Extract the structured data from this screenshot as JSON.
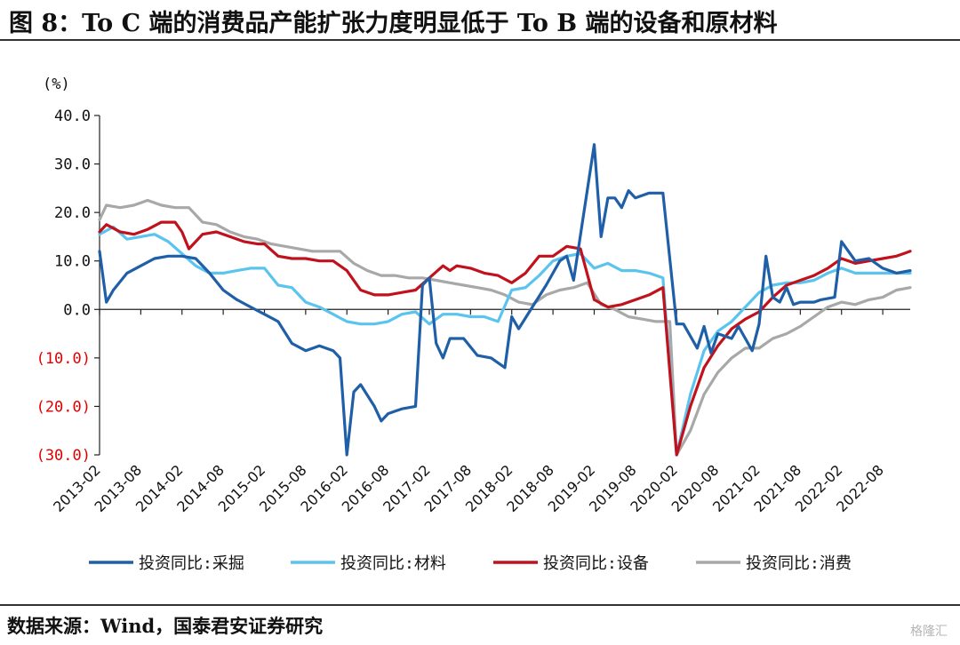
{
  "title": "图 8：To C 端的消费品产能扩张力度明显低于 To B 端的设备和原材料",
  "source": "数据来源：Wind，国泰君安证券研究",
  "watermark": "格隆汇",
  "colors": {
    "mining": "#1f5fa8",
    "materials": "#5bc4ee",
    "equipment": "#c0121c",
    "consumer": "#a8a8a8",
    "negative_label": "#e00000"
  },
  "chart_data": {
    "type": "line",
    "unit_label": "(%)",
    "ylim": [
      -30,
      40
    ],
    "yticks": [
      40,
      30,
      20,
      10,
      0,
      -10,
      -20,
      -30
    ],
    "ytick_labels": [
      "40.0",
      "30.0",
      "20.0",
      "10.0",
      "0.0",
      "(10.0)",
      "(20.0)",
      "(30.0)"
    ],
    "x_start": "2013-02",
    "x_end": "2022-12",
    "xtick_labels": [
      "2013-02",
      "2013-08",
      "2014-02",
      "2014-08",
      "2015-02",
      "2015-08",
      "2016-02",
      "2016-08",
      "2017-02",
      "2017-08",
      "2018-02",
      "2018-08",
      "2019-02",
      "2019-08",
      "2020-02",
      "2020-08",
      "2021-02",
      "2021-08",
      "2022-02",
      "2022-08"
    ],
    "legend_position": "bottom",
    "grid": false,
    "series": [
      {
        "name": "投资同比:采掘",
        "color": "#1f5fa8",
        "points": [
          [
            "2013-02",
            12.0
          ],
          [
            "2013-03",
            1.5
          ],
          [
            "2013-04",
            4.0
          ],
          [
            "2013-06",
            7.5
          ],
          [
            "2013-08",
            9.0
          ],
          [
            "2013-10",
            10.5
          ],
          [
            "2013-12",
            11.0
          ],
          [
            "2014-02",
            11.0
          ],
          [
            "2014-04",
            10.5
          ],
          [
            "2014-06",
            7.5
          ],
          [
            "2014-08",
            4.0
          ],
          [
            "2014-10",
            2.0
          ],
          [
            "2014-12",
            0.5
          ],
          [
            "2015-02",
            -1.0
          ],
          [
            "2015-04",
            -2.5
          ],
          [
            "2015-06",
            -7.0
          ],
          [
            "2015-08",
            -8.5
          ],
          [
            "2015-10",
            -7.5
          ],
          [
            "2015-12",
            -8.5
          ],
          [
            "2016-01",
            -10.0
          ],
          [
            "2016-02",
            -30.0
          ],
          [
            "2016-03",
            -17.0
          ],
          [
            "2016-04",
            -15.5
          ],
          [
            "2016-06",
            -20.0
          ],
          [
            "2016-07",
            -23.0
          ],
          [
            "2016-08",
            -21.5
          ],
          [
            "2016-09",
            -21.0
          ],
          [
            "2016-10",
            -20.5
          ],
          [
            "2016-12",
            -20.0
          ],
          [
            "2017-01",
            5.0
          ],
          [
            "2017-02",
            6.5
          ],
          [
            "2017-03",
            -7.0
          ],
          [
            "2017-04",
            -10.0
          ],
          [
            "2017-05",
            -6.0
          ],
          [
            "2017-07",
            -6.0
          ],
          [
            "2017-09",
            -9.5
          ],
          [
            "2017-11",
            -10.0
          ],
          [
            "2018-01",
            -12.0
          ],
          [
            "2018-02",
            -1.5
          ],
          [
            "2018-03",
            -4.0
          ],
          [
            "2018-05",
            0.5
          ],
          [
            "2018-07",
            5.0
          ],
          [
            "2018-09",
            10.0
          ],
          [
            "2018-10",
            11.0
          ],
          [
            "2018-11",
            6.0
          ],
          [
            "2019-02",
            34.0
          ],
          [
            "2019-03",
            15.0
          ],
          [
            "2019-04",
            23.0
          ],
          [
            "2019-05",
            23.0
          ],
          [
            "2019-06",
            21.0
          ],
          [
            "2019-07",
            24.5
          ],
          [
            "2019-08",
            23.0
          ],
          [
            "2019-10",
            24.0
          ],
          [
            "2019-12",
            24.0
          ],
          [
            "2020-02",
            -3.0
          ],
          [
            "2020-03",
            -3.0
          ],
          [
            "2020-05",
            -8.0
          ],
          [
            "2020-06",
            -3.5
          ],
          [
            "2020-07",
            -9.0
          ],
          [
            "2020-08",
            -5.0
          ],
          [
            "2020-10",
            -6.0
          ],
          [
            "2020-11",
            -3.5
          ],
          [
            "2021-01",
            -8.5
          ],
          [
            "2021-02",
            -3.0
          ],
          [
            "2021-03",
            11.0
          ],
          [
            "2021-04",
            2.5
          ],
          [
            "2021-05",
            1.5
          ],
          [
            "2021-06",
            4.5
          ],
          [
            "2021-07",
            1.0
          ],
          [
            "2021-08",
            1.5
          ],
          [
            "2021-10",
            1.5
          ],
          [
            "2021-11",
            2.0
          ],
          [
            "2022-01",
            2.5
          ],
          [
            "2022-02",
            14.0
          ],
          [
            "2022-04",
            10.0
          ],
          [
            "2022-06",
            10.5
          ],
          [
            "2022-08",
            8.5
          ],
          [
            "2022-10",
            7.5
          ],
          [
            "2022-12",
            8.0
          ]
        ]
      },
      {
        "name": "投资同比:材料",
        "color": "#5bc4ee",
        "points": [
          [
            "2013-02",
            15.5
          ],
          [
            "2013-04",
            17.0
          ],
          [
            "2013-06",
            14.5
          ],
          [
            "2013-08",
            15.0
          ],
          [
            "2013-10",
            15.5
          ],
          [
            "2013-12",
            14.0
          ],
          [
            "2014-02",
            11.5
          ],
          [
            "2014-04",
            9.0
          ],
          [
            "2014-06",
            7.5
          ],
          [
            "2014-08",
            7.5
          ],
          [
            "2014-10",
            8.0
          ],
          [
            "2014-12",
            8.5
          ],
          [
            "2015-02",
            8.5
          ],
          [
            "2015-04",
            5.0
          ],
          [
            "2015-06",
            4.5
          ],
          [
            "2015-08",
            1.5
          ],
          [
            "2015-10",
            0.5
          ],
          [
            "2015-12",
            -1.0
          ],
          [
            "2016-02",
            -2.5
          ],
          [
            "2016-04",
            -3.0
          ],
          [
            "2016-06",
            -3.0
          ],
          [
            "2016-08",
            -2.5
          ],
          [
            "2016-10",
            -1.0
          ],
          [
            "2016-12",
            -0.5
          ],
          [
            "2017-02",
            -3.0
          ],
          [
            "2017-04",
            -1.0
          ],
          [
            "2017-06",
            -1.0
          ],
          [
            "2017-08",
            -1.5
          ],
          [
            "2017-10",
            -1.5
          ],
          [
            "2017-12",
            -2.5
          ],
          [
            "2018-02",
            4.0
          ],
          [
            "2018-04",
            4.5
          ],
          [
            "2018-06",
            7.0
          ],
          [
            "2018-08",
            10.0
          ],
          [
            "2018-10",
            11.0
          ],
          [
            "2018-12",
            11.5
          ],
          [
            "2019-02",
            8.5
          ],
          [
            "2019-04",
            9.5
          ],
          [
            "2019-06",
            8.0
          ],
          [
            "2019-08",
            8.0
          ],
          [
            "2019-10",
            7.5
          ],
          [
            "2019-12",
            6.5
          ],
          [
            "2020-02",
            -30.0
          ],
          [
            "2020-04",
            -17.5
          ],
          [
            "2020-06",
            -8.5
          ],
          [
            "2020-08",
            -4.5
          ],
          [
            "2020-10",
            -2.5
          ],
          [
            "2020-12",
            0.5
          ],
          [
            "2021-02",
            3.5
          ],
          [
            "2021-04",
            5.0
          ],
          [
            "2021-06",
            5.5
          ],
          [
            "2021-08",
            5.5
          ],
          [
            "2021-10",
            6.0
          ],
          [
            "2021-12",
            7.5
          ],
          [
            "2022-02",
            8.5
          ],
          [
            "2022-04",
            7.5
          ],
          [
            "2022-06",
            7.5
          ],
          [
            "2022-08",
            7.5
          ],
          [
            "2022-10",
            7.5
          ],
          [
            "2022-12",
            7.5
          ]
        ]
      },
      {
        "name": "投资同比:设备",
        "color": "#c0121c",
        "points": [
          [
            "2013-02",
            16.0
          ],
          [
            "2013-03",
            17.5
          ],
          [
            "2013-05",
            16.0
          ],
          [
            "2013-07",
            15.5
          ],
          [
            "2013-09",
            16.5
          ],
          [
            "2013-11",
            18.0
          ],
          [
            "2014-01",
            18.0
          ],
          [
            "2014-02",
            16.0
          ],
          [
            "2014-03",
            12.5
          ],
          [
            "2014-05",
            15.5
          ],
          [
            "2014-07",
            16.0
          ],
          [
            "2014-09",
            15.0
          ],
          [
            "2014-11",
            14.0
          ],
          [
            "2015-01",
            13.5
          ],
          [
            "2015-02",
            13.5
          ],
          [
            "2015-04",
            11.0
          ],
          [
            "2015-06",
            10.5
          ],
          [
            "2015-08",
            10.5
          ],
          [
            "2015-10",
            10.0
          ],
          [
            "2015-12",
            10.0
          ],
          [
            "2016-02",
            8.0
          ],
          [
            "2016-04",
            4.0
          ],
          [
            "2016-06",
            3.0
          ],
          [
            "2016-08",
            3.0
          ],
          [
            "2016-10",
            3.5
          ],
          [
            "2016-12",
            4.0
          ],
          [
            "2017-02",
            6.5
          ],
          [
            "2017-04",
            9.0
          ],
          [
            "2017-05",
            8.0
          ],
          [
            "2017-06",
            9.0
          ],
          [
            "2017-08",
            8.5
          ],
          [
            "2017-10",
            7.5
          ],
          [
            "2017-12",
            7.0
          ],
          [
            "2018-02",
            5.5
          ],
          [
            "2018-04",
            7.5
          ],
          [
            "2018-06",
            11.0
          ],
          [
            "2018-08",
            11.0
          ],
          [
            "2018-10",
            13.0
          ],
          [
            "2018-12",
            12.5
          ],
          [
            "2019-02",
            2.0
          ],
          [
            "2019-04",
            0.5
          ],
          [
            "2019-06",
            1.0
          ],
          [
            "2019-08",
            2.0
          ],
          [
            "2019-10",
            3.0
          ],
          [
            "2019-12",
            4.5
          ],
          [
            "2020-02",
            -30.0
          ],
          [
            "2020-04",
            -20.0
          ],
          [
            "2020-06",
            -12.0
          ],
          [
            "2020-08",
            -7.5
          ],
          [
            "2020-10",
            -4.0
          ],
          [
            "2020-12",
            -2.0
          ],
          [
            "2021-02",
            -0.5
          ],
          [
            "2021-04",
            2.5
          ],
          [
            "2021-06",
            5.0
          ],
          [
            "2021-08",
            6.0
          ],
          [
            "2021-10",
            7.0
          ],
          [
            "2021-12",
            8.5
          ],
          [
            "2022-02",
            10.5
          ],
          [
            "2022-04",
            9.5
          ],
          [
            "2022-06",
            10.0
          ],
          [
            "2022-08",
            10.5
          ],
          [
            "2022-10",
            11.0
          ],
          [
            "2022-12",
            12.0
          ]
        ]
      },
      {
        "name": "投资同比:消费",
        "color": "#a8a8a8",
        "points": [
          [
            "2013-02",
            18.5
          ],
          [
            "2013-03",
            21.5
          ],
          [
            "2013-05",
            21.0
          ],
          [
            "2013-07",
            21.5
          ],
          [
            "2013-09",
            22.5
          ],
          [
            "2013-11",
            21.5
          ],
          [
            "2014-01",
            21.0
          ],
          [
            "2014-03",
            21.0
          ],
          [
            "2014-05",
            18.0
          ],
          [
            "2014-07",
            17.5
          ],
          [
            "2014-09",
            16.0
          ],
          [
            "2014-11",
            15.0
          ],
          [
            "2015-01",
            14.5
          ],
          [
            "2015-03",
            13.5
          ],
          [
            "2015-05",
            13.0
          ],
          [
            "2015-07",
            12.5
          ],
          [
            "2015-09",
            12.0
          ],
          [
            "2015-11",
            12.0
          ],
          [
            "2016-01",
            12.0
          ],
          [
            "2016-03",
            9.5
          ],
          [
            "2016-05",
            8.0
          ],
          [
            "2016-07",
            7.0
          ],
          [
            "2016-09",
            7.0
          ],
          [
            "2016-11",
            6.5
          ],
          [
            "2017-01",
            6.5
          ],
          [
            "2017-03",
            6.0
          ],
          [
            "2017-05",
            5.5
          ],
          [
            "2017-07",
            5.0
          ],
          [
            "2017-09",
            4.5
          ],
          [
            "2017-11",
            4.0
          ],
          [
            "2018-01",
            3.0
          ],
          [
            "2018-03",
            1.5
          ],
          [
            "2018-05",
            1.0
          ],
          [
            "2018-07",
            3.0
          ],
          [
            "2018-09",
            4.0
          ],
          [
            "2018-11",
            4.5
          ],
          [
            "2019-01",
            5.5
          ],
          [
            "2019-03",
            1.0
          ],
          [
            "2019-05",
            0.0
          ],
          [
            "2019-07",
            -1.5
          ],
          [
            "2019-09",
            -2.0
          ],
          [
            "2019-11",
            -2.5
          ],
          [
            "2020-01",
            -2.5
          ],
          [
            "2020-02",
            -30.0
          ],
          [
            "2020-04",
            -25.0
          ],
          [
            "2020-06",
            -17.5
          ],
          [
            "2020-08",
            -13.0
          ],
          [
            "2020-10",
            -10.0
          ],
          [
            "2020-12",
            -8.0
          ],
          [
            "2021-02",
            -8.0
          ],
          [
            "2021-04",
            -6.0
          ],
          [
            "2021-06",
            -5.0
          ],
          [
            "2021-08",
            -3.5
          ],
          [
            "2021-10",
            -1.5
          ],
          [
            "2021-12",
            0.5
          ],
          [
            "2022-02",
            1.5
          ],
          [
            "2022-04",
            1.0
          ],
          [
            "2022-06",
            2.0
          ],
          [
            "2022-08",
            2.5
          ],
          [
            "2022-10",
            4.0
          ],
          [
            "2022-12",
            4.5
          ]
        ]
      }
    ]
  }
}
